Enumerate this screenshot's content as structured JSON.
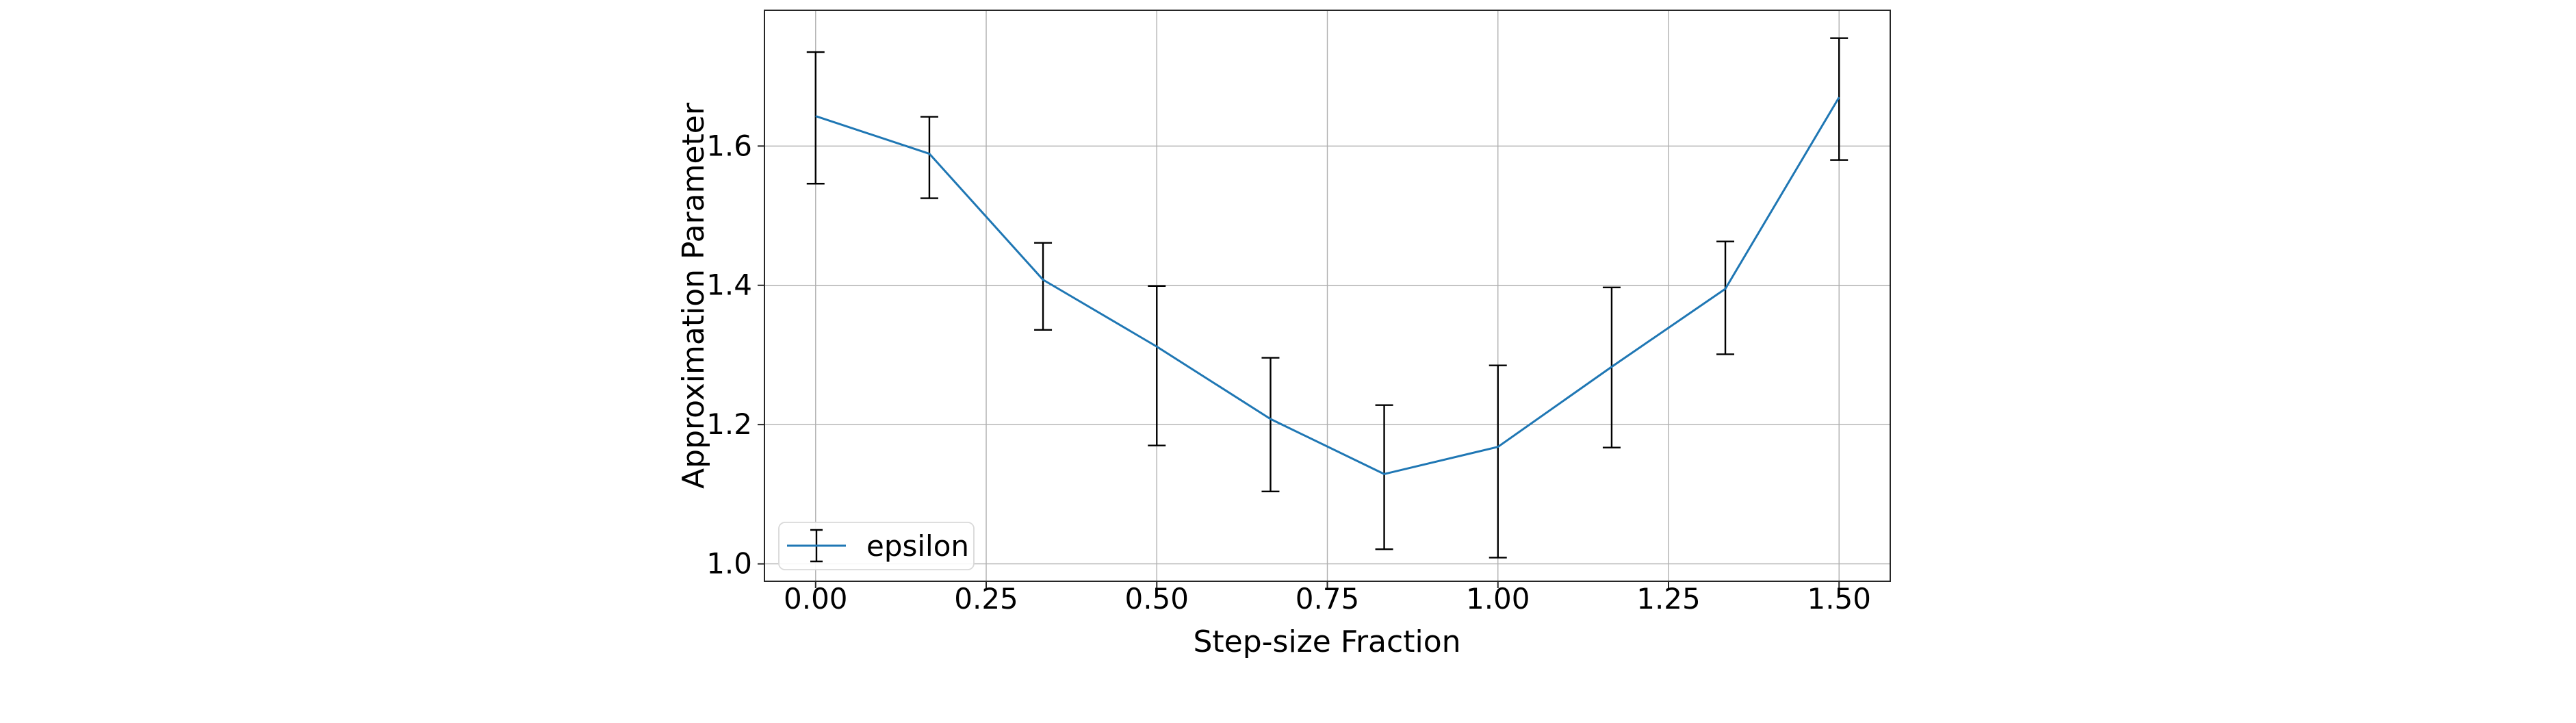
{
  "figure": {
    "background_color": "#ffffff"
  },
  "chart_data": {
    "type": "line",
    "title": "",
    "xlabel": "Step-size Fraction",
    "ylabel": "Approximation Parameter",
    "xlim": [
      -0.075,
      1.575
    ],
    "ylim": [
      0.975,
      1.795
    ],
    "x_ticks": [
      0.0,
      0.25,
      0.5,
      0.75,
      1.0,
      1.25,
      1.5
    ],
    "x_tick_labels": [
      "0.00",
      "0.25",
      "0.50",
      "0.75",
      "1.00",
      "1.25",
      "1.50"
    ],
    "y_ticks": [
      1.0,
      1.2,
      1.4,
      1.6
    ],
    "y_tick_labels": [
      "1.0",
      "1.2",
      "1.4",
      "1.6"
    ],
    "grid": true,
    "grid_color": "#b0b0b0",
    "spine_color": "#262626",
    "legend": {
      "position": "lower left",
      "entries": [
        "epsilon"
      ]
    },
    "series": [
      {
        "name": "epsilon",
        "color": "#1f77b4",
        "error_color": "#000000",
        "x": [
          0.0,
          0.1667,
          0.3333,
          0.5,
          0.6667,
          0.8333,
          1.0,
          1.1667,
          1.3333,
          1.5
        ],
        "y": [
          1.643,
          1.589,
          1.408,
          1.312,
          1.208,
          1.129,
          1.168,
          1.283,
          1.395,
          1.67
        ],
        "y_err_low": [
          1.546,
          1.525,
          1.336,
          1.17,
          1.104,
          1.021,
          1.009,
          1.167,
          1.301,
          1.58
        ],
        "y_err_high": [
          1.735,
          1.642,
          1.461,
          1.399,
          1.296,
          1.228,
          1.285,
          1.397,
          1.463,
          1.755
        ]
      }
    ]
  }
}
